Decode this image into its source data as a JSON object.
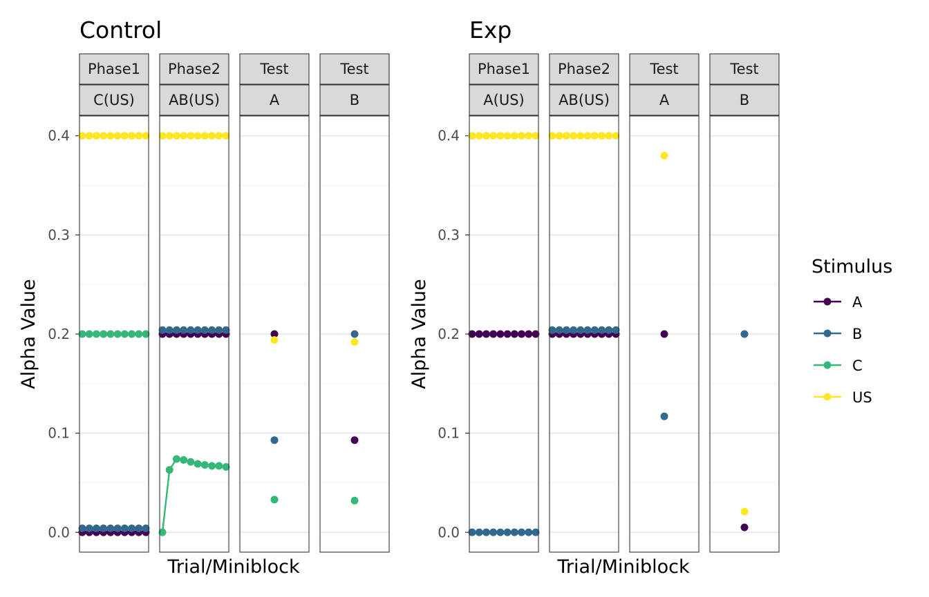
{
  "legend": {
    "title": "Stimulus",
    "items": [
      {
        "label": "A",
        "color": "#440154"
      },
      {
        "label": "B",
        "color": "#31688E"
      },
      {
        "label": "C",
        "color": "#35B779"
      },
      {
        "label": "US",
        "color": "#FDE725"
      }
    ]
  },
  "chart_data": [
    {
      "type": "line",
      "title": "Control",
      "xlabel": "Trial/Miniblock",
      "ylabel": "Alpha Value",
      "ylim": [
        -0.02,
        0.42
      ],
      "yticks": [
        0.0,
        0.1,
        0.2,
        0.3,
        0.4
      ],
      "ytick_labels": [
        "0.0",
        "0.1",
        "0.2",
        "0.3",
        "0.4"
      ],
      "grid": true,
      "legend_position": "right",
      "panels": [
        {
          "strip_top": "Phase1",
          "strip_bottom": "C(US)",
          "series": [
            {
              "name": "A",
              "x": [
                1,
                2,
                3,
                4,
                5,
                6,
                7,
                8,
                9,
                10
              ],
              "y": [
                0,
                0,
                0,
                0,
                0,
                0,
                0,
                0,
                0,
                0
              ]
            },
            {
              "name": "B",
              "x": [
                1,
                2,
                3,
                4,
                5,
                6,
                7,
                8,
                9,
                10
              ],
              "y": [
                0.004,
                0.004,
                0.004,
                0.004,
                0.004,
                0.004,
                0.004,
                0.004,
                0.004,
                0.004
              ]
            },
            {
              "name": "C",
              "x": [
                1,
                2,
                3,
                4,
                5,
                6,
                7,
                8,
                9,
                10
              ],
              "y": [
                0.2,
                0.2,
                0.2,
                0.2,
                0.2,
                0.2,
                0.2,
                0.2,
                0.2,
                0.2
              ]
            },
            {
              "name": "US",
              "x": [
                1,
                2,
                3,
                4,
                5,
                6,
                7,
                8,
                9,
                10
              ],
              "y": [
                0.4,
                0.4,
                0.4,
                0.4,
                0.4,
                0.4,
                0.4,
                0.4,
                0.4,
                0.4
              ]
            }
          ]
        },
        {
          "strip_top": "Phase2",
          "strip_bottom": "AB(US)",
          "series": [
            {
              "name": "A",
              "x": [
                1,
                2,
                3,
                4,
                5,
                6,
                7,
                8,
                9,
                10
              ],
              "y": [
                0.2,
                0.2,
                0.2,
                0.2,
                0.2,
                0.2,
                0.2,
                0.2,
                0.2,
                0.2
              ]
            },
            {
              "name": "B",
              "x": [
                1,
                2,
                3,
                4,
                5,
                6,
                7,
                8,
                9,
                10
              ],
              "y": [
                0.204,
                0.204,
                0.204,
                0.204,
                0.204,
                0.204,
                0.204,
                0.204,
                0.204,
                0.204
              ]
            },
            {
              "name": "C",
              "x": [
                1,
                2,
                3,
                4,
                5,
                6,
                7,
                8,
                9,
                10
              ],
              "y": [
                0.0,
                0.063,
                0.074,
                0.073,
                0.071,
                0.069,
                0.068,
                0.067,
                0.067,
                0.066
              ]
            },
            {
              "name": "US",
              "x": [
                1,
                2,
                3,
                4,
                5,
                6,
                7,
                8,
                9,
                10
              ],
              "y": [
                0.4,
                0.4,
                0.4,
                0.4,
                0.4,
                0.4,
                0.4,
                0.4,
                0.4,
                0.4
              ]
            }
          ]
        },
        {
          "strip_top": "Test",
          "strip_bottom": "A",
          "series": [
            {
              "name": "A",
              "x": [
                1
              ],
              "y": [
                0.2
              ]
            },
            {
              "name": "B",
              "x": [
                1
              ],
              "y": [
                0.093
              ]
            },
            {
              "name": "C",
              "x": [
                1
              ],
              "y": [
                0.033
              ]
            },
            {
              "name": "US",
              "x": [
                1
              ],
              "y": [
                0.194
              ]
            }
          ]
        },
        {
          "strip_top": "Test",
          "strip_bottom": "B",
          "series": [
            {
              "name": "A",
              "x": [
                1
              ],
              "y": [
                0.093
              ]
            },
            {
              "name": "B",
              "x": [
                1
              ],
              "y": [
                0.2
              ]
            },
            {
              "name": "C",
              "x": [
                1
              ],
              "y": [
                0.032
              ]
            },
            {
              "name": "US",
              "x": [
                1
              ],
              "y": [
                0.192
              ]
            }
          ]
        }
      ]
    },
    {
      "type": "line",
      "title": "Exp",
      "xlabel": "Trial/Miniblock",
      "ylabel": "Alpha Value",
      "ylim": [
        -0.02,
        0.42
      ],
      "yticks": [
        0.0,
        0.1,
        0.2,
        0.3,
        0.4
      ],
      "ytick_labels": [
        "0.0",
        "0.1",
        "0.2",
        "0.3",
        "0.4"
      ],
      "grid": true,
      "legend_position": "right",
      "panels": [
        {
          "strip_top": "Phase1",
          "strip_bottom": "A(US)",
          "series": [
            {
              "name": "A",
              "x": [
                1,
                2,
                3,
                4,
                5,
                6,
                7,
                8,
                9,
                10
              ],
              "y": [
                0.2,
                0.2,
                0.2,
                0.2,
                0.2,
                0.2,
                0.2,
                0.2,
                0.2,
                0.2
              ]
            },
            {
              "name": "B",
              "x": [
                1,
                2,
                3,
                4,
                5,
                6,
                7,
                8,
                9,
                10
              ],
              "y": [
                0,
                0,
                0,
                0,
                0,
                0,
                0,
                0,
                0,
                0
              ]
            },
            {
              "name": "US",
              "x": [
                1,
                2,
                3,
                4,
                5,
                6,
                7,
                8,
                9,
                10
              ],
              "y": [
                0.4,
                0.4,
                0.4,
                0.4,
                0.4,
                0.4,
                0.4,
                0.4,
                0.4,
                0.4
              ]
            }
          ]
        },
        {
          "strip_top": "Phase2",
          "strip_bottom": "AB(US)",
          "series": [
            {
              "name": "A",
              "x": [
                1,
                2,
                3,
                4,
                5,
                6,
                7,
                8,
                9,
                10
              ],
              "y": [
                0.2,
                0.2,
                0.2,
                0.2,
                0.2,
                0.2,
                0.2,
                0.2,
                0.2,
                0.2
              ]
            },
            {
              "name": "B",
              "x": [
                1,
                2,
                3,
                4,
                5,
                6,
                7,
                8,
                9,
                10
              ],
              "y": [
                0.204,
                0.204,
                0.204,
                0.204,
                0.204,
                0.204,
                0.204,
                0.204,
                0.204,
                0.204
              ]
            },
            {
              "name": "US",
              "x": [
                1,
                2,
                3,
                4,
                5,
                6,
                7,
                8,
                9,
                10
              ],
              "y": [
                0.4,
                0.4,
                0.4,
                0.4,
                0.4,
                0.4,
                0.4,
                0.4,
                0.4,
                0.4
              ]
            }
          ]
        },
        {
          "strip_top": "Test",
          "strip_bottom": "A",
          "series": [
            {
              "name": "A",
              "x": [
                1
              ],
              "y": [
                0.2
              ]
            },
            {
              "name": "B",
              "x": [
                1
              ],
              "y": [
                0.117
              ]
            },
            {
              "name": "US",
              "x": [
                1
              ],
              "y": [
                0.38
              ]
            }
          ]
        },
        {
          "strip_top": "Test",
          "strip_bottom": "B",
          "series": [
            {
              "name": "A",
              "x": [
                1
              ],
              "y": [
                0.005
              ]
            },
            {
              "name": "B",
              "x": [
                1
              ],
              "y": [
                0.2
              ]
            },
            {
              "name": "US",
              "x": [
                1
              ],
              "y": [
                0.021
              ]
            }
          ]
        }
      ]
    }
  ]
}
